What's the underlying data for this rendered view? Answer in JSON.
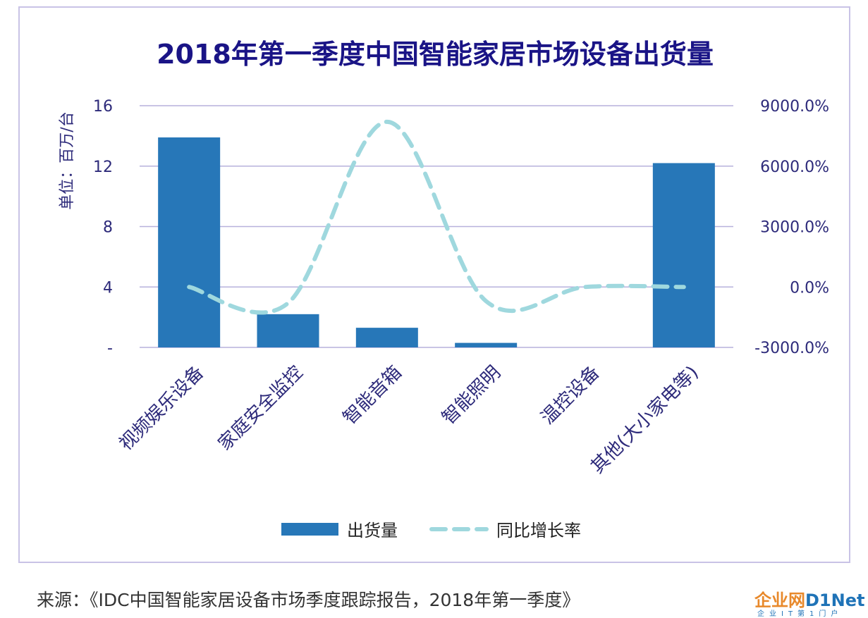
{
  "chart_data": {
    "type": "bar",
    "title": "2018年第一季度中国智能家居市场设备出货量",
    "ylabel": "单位：百万/台",
    "categories": [
      "视频娱乐设备",
      "家庭安全监控",
      "智能音箱",
      "智能照明",
      "温控设备",
      "其他(大小家电等)"
    ],
    "series": [
      {
        "name": "出货量",
        "kind": "bar",
        "axis": "left",
        "color": "#2777b8",
        "values": [
          13.9,
          2.2,
          1.3,
          0.3,
          0.0,
          12.2
        ]
      },
      {
        "name": "同比增长率",
        "kind": "line",
        "style": "dashed",
        "smooth": true,
        "axis": "right",
        "color": "#9fd8de",
        "values": [
          0,
          -800,
          8200,
          -700,
          0,
          0
        ]
      }
    ],
    "ylim_left": [
      0,
      16
    ],
    "ylim_right": [
      -3000,
      9000
    ],
    "yticks_left": [
      "-",
      "4",
      "8",
      "12",
      "16"
    ],
    "yticks_right": [
      "-3000.0%",
      "0.0%",
      "3000.0%",
      "6000.0%",
      "9000.0%"
    ],
    "grid": true,
    "legend_position": "bottom"
  },
  "source_text": "来源：《IDC中国智能家居设备市场季度跟踪报告，2018年第一季度》",
  "logo": {
    "cn": "企业网",
    "en": "D1Net",
    "sub": "企业IT第1门户"
  }
}
